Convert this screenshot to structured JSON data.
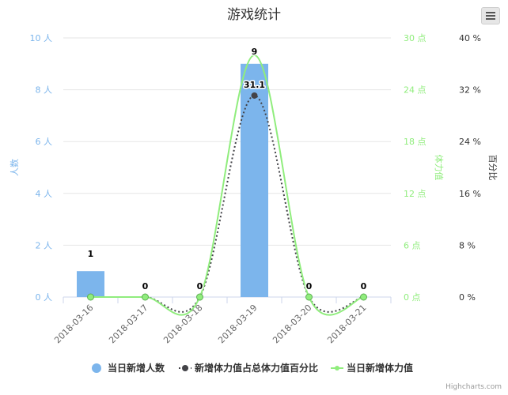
{
  "chart_data": {
    "type": "bar",
    "title": "游戏统计",
    "categories": [
      "2018-03-16",
      "2018-03-17",
      "2018-03-18",
      "2018-03-19",
      "2018-03-20",
      "2018-03-21"
    ],
    "axes": {
      "left": {
        "label": "人数",
        "unit": " 人",
        "ticks": [
          0,
          2,
          4,
          6,
          8,
          10
        ],
        "ylim": [
          0,
          10
        ],
        "color": "#7cb5ec"
      },
      "middle": {
        "label": "体力值",
        "unit": " 点",
        "ticks": [
          0,
          6,
          12,
          18,
          24,
          30
        ],
        "ylim": [
          0,
          30
        ],
        "color": "#90ed7d"
      },
      "right": {
        "label": "百分比",
        "unit": " %",
        "ticks": [
          0,
          8,
          16,
          24,
          32,
          40
        ],
        "ylim": [
          0,
          40
        ],
        "color": "#434348"
      }
    },
    "series": [
      {
        "name": "当日新增人数",
        "type": "column",
        "axis": "left",
        "values": [
          1,
          0,
          0,
          9,
          0,
          0
        ],
        "color": "#7cb5ec"
      },
      {
        "name": "新增体力值占总体力值百分比",
        "type": "spline-dotted",
        "axis": "right",
        "values": [
          0,
          0,
          0,
          31.1,
          0,
          0
        ],
        "color": "#434348"
      },
      {
        "name": "当日新增体力值",
        "type": "spline",
        "axis": "middle",
        "values": [
          0,
          0,
          0,
          28,
          0,
          0
        ],
        "color": "#90ed7d"
      }
    ],
    "data_labels": {
      "column": [
        "1",
        "0",
        "0",
        "9",
        "0",
        "0"
      ],
      "percent": [
        "",
        "",
        "",
        "31.1",
        "",
        ""
      ]
    },
    "grid": true,
    "legend_position": "bottom-center"
  },
  "credits": "Highcharts.com",
  "menu_icon": "hamburger-menu-icon"
}
